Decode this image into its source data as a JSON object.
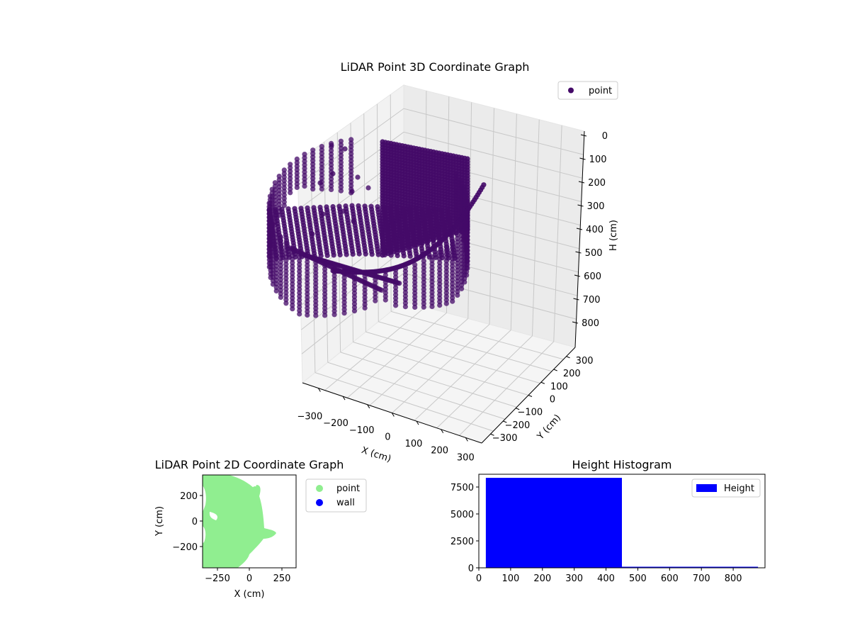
{
  "chart_data": [
    {
      "type": "scatter",
      "projection": "3d",
      "title": "LiDAR Point 3D Coordinate Graph",
      "xlabel": "X (cm)",
      "ylabel": "Y (cm)",
      "zlabel": "H (cm)",
      "x_ticks": [
        -300,
        -200,
        -100,
        0,
        100,
        200,
        300
      ],
      "y_ticks": [
        -300,
        -200,
        -100,
        0,
        100,
        200,
        300
      ],
      "z_ticks": [
        0,
        100,
        200,
        300,
        400,
        500,
        600,
        700,
        800
      ],
      "xlim": [
        -350,
        350
      ],
      "ylim": [
        -350,
        350
      ],
      "zlim": [
        880,
        0
      ],
      "z_inverted": true,
      "grid": true,
      "legend": [
        {
          "label": "point",
          "color": "#440a68",
          "marker": "circle"
        }
      ],
      "legend_position": "upper right",
      "series": [
        {
          "name": "point",
          "color": "#440a68",
          "description": "Dense ring of vertical LiDAR scan columns forming a partial cylinder/arc of points around the origin; heights mostly 0-450 cm, with curved arc trails descending to ~650 cm."
        }
      ]
    },
    {
      "type": "scatter",
      "title": "LiDAR Point 2D Coordinate Graph",
      "xlabel": "X (cm)",
      "ylabel": "Y (cm)",
      "x_ticks": [
        -250,
        0,
        250
      ],
      "y_ticks": [
        -200,
        0,
        200
      ],
      "xlim": [
        -360,
        360
      ],
      "ylim": [
        -360,
        360
      ],
      "legend": [
        {
          "label": "point",
          "color": "#90ee90",
          "marker": "circle"
        },
        {
          "label": "wall",
          "color": "#0000ff",
          "marker": "circle"
        }
      ],
      "legend_position": "outside right",
      "series": [
        {
          "name": "point",
          "color": "#90ee90",
          "description": "Filled green region covering left half of plot, bounded on right by an arc from about (-60, 360) to (200, -100) to (-60, -360)."
        },
        {
          "name": "wall",
          "color": "#0000ff",
          "values": []
        }
      ]
    },
    {
      "type": "bar",
      "subtype": "histogram",
      "title": "Height Histogram",
      "xlabel": "",
      "ylabel": "",
      "bins": [
        [
          22,
          450
        ],
        [
          450,
          878
        ]
      ],
      "values": [
        8350,
        100
      ],
      "x_ticks": [
        0,
        100,
        200,
        300,
        400,
        500,
        600,
        700,
        800
      ],
      "y_ticks": [
        0,
        2500,
        5000,
        7500
      ],
      "xlim": [
        0,
        900
      ],
      "ylim": [
        0,
        8800
      ],
      "color": "#0000ff",
      "legend": [
        {
          "label": "Height",
          "color": "#0000ff"
        }
      ],
      "legend_position": "upper right"
    }
  ],
  "plot3d": {
    "title": "LiDAR Point 3D Coordinate Graph",
    "xlabel": "X (cm)",
    "ylabel": "Y (cm)",
    "zlabel": "H (cm)",
    "legend_label": "point",
    "x_ticks": [
      "−300",
      "−200",
      "−100",
      "0",
      "100",
      "200",
      "300"
    ],
    "y_ticks": [
      "300",
      "200",
      "100",
      "0",
      "−100",
      "−200",
      "−300"
    ],
    "z_ticks": [
      "0",
      "100",
      "200",
      "300",
      "400",
      "500",
      "600",
      "700",
      "800"
    ],
    "point_color": "#440a68"
  },
  "plot2d": {
    "title": "LiDAR Point 2D Coordinate Graph",
    "xlabel": "X (cm)",
    "ylabel": "Y (cm)",
    "x_ticks": [
      "−250",
      "0",
      "250"
    ],
    "y_ticks": [
      "200",
      "0",
      "−200"
    ],
    "legend": [
      {
        "label": "point",
        "color": "#90ee90"
      },
      {
        "label": "wall",
        "color": "#0000ff"
      }
    ]
  },
  "hist": {
    "title": "Height Histogram",
    "legend_label": "Height",
    "x_ticks": [
      "0",
      "100",
      "200",
      "300",
      "400",
      "500",
      "600",
      "700",
      "800"
    ],
    "y_ticks": [
      "0",
      "2500",
      "5000",
      "7500"
    ],
    "color": "#0000ff"
  }
}
